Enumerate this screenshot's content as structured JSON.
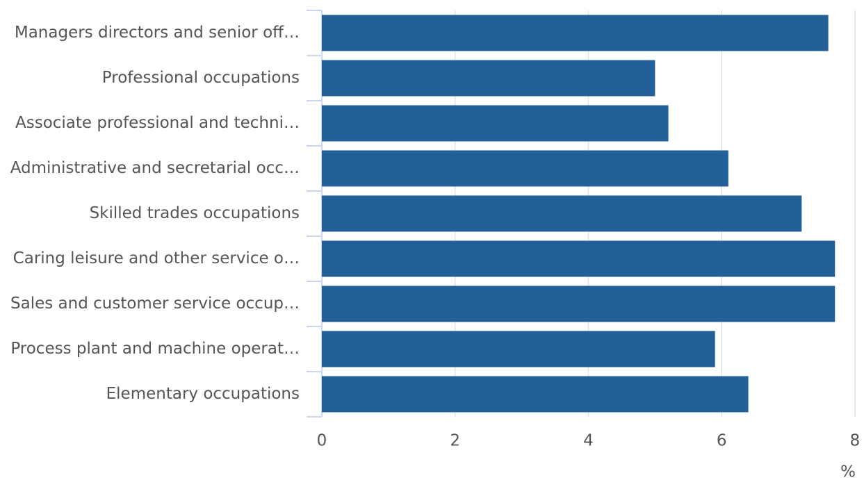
{
  "chart_data": {
    "type": "bar",
    "orientation": "horizontal",
    "categories": [
      "Managers directors and senior off…",
      "Professional occupations",
      "Associate professional and techni…",
      "Administrative and secretarial occ…",
      "Skilled trades occupations",
      "Caring leisure and other service o…",
      "Sales and customer service occup…",
      "Process plant and machine operat…",
      "Elementary occupations"
    ],
    "values": [
      7.6,
      5.0,
      5.2,
      6.1,
      7.2,
      7.7,
      7.7,
      5.9,
      6.4
    ],
    "color": "#23609a",
    "x_label": "%",
    "xlim": [
      0,
      8
    ],
    "xticks": [
      0,
      2,
      4,
      6,
      8
    ],
    "grid": true
  }
}
